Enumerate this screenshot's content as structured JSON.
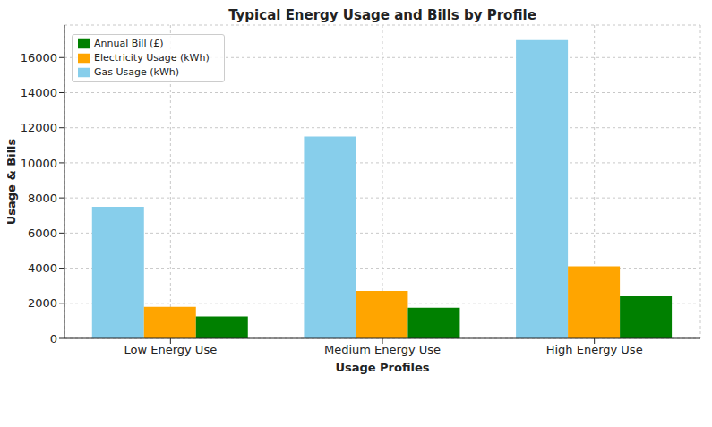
{
  "chart_data": {
    "type": "bar",
    "title": "Typical Energy Usage and Bills by Profile",
    "x_label": "Usage Profiles",
    "y_label": "Usage & Bills",
    "categories": [
      "Low Energy Use",
      "Medium Energy Use",
      "High Energy Use"
    ],
    "series": [
      {
        "name": "Gas Usage (kWh)",
        "color": "#87ceeb",
        "values": [
          7500,
          11500,
          17000
        ]
      },
      {
        "name": "Electricity Usage (kWh)",
        "color": "#ffa500",
        "values": [
          1800,
          2700,
          4100
        ]
      },
      {
        "name": "Annual Bill (£)",
        "color": "#008000",
        "values": [
          1250,
          1750,
          2400
        ]
      }
    ],
    "ylim": [
      0,
      17850
    ],
    "yticks": [
      0,
      2000,
      4000,
      6000,
      8000,
      10000,
      12000,
      14000,
      16000
    ],
    "grid": true,
    "legend": "upper left"
  }
}
